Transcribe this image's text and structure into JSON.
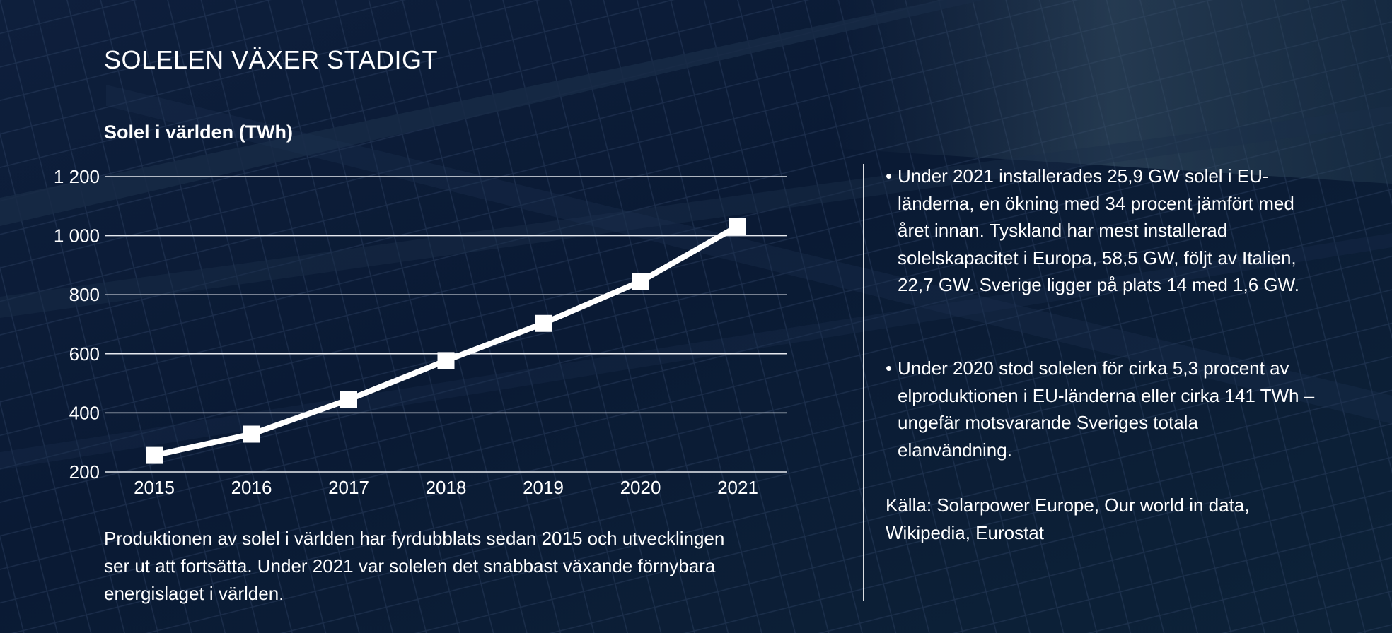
{
  "header": {
    "title": "SOLELEN VÄXER STADIGT"
  },
  "chart_data": {
    "type": "line",
    "title": "Solel i världen (TWh)",
    "xlabel": "",
    "ylabel": "",
    "categories": [
      "2015",
      "2016",
      "2017",
      "2018",
      "2019",
      "2020",
      "2021"
    ],
    "values": [
      256,
      328,
      445,
      577,
      703,
      845,
      1032
    ],
    "ylim": [
      200,
      1200
    ],
    "yticks": [
      200,
      400,
      600,
      800,
      1000,
      1200
    ],
    "ytick_labels": [
      "200",
      "400",
      "600",
      "800",
      "1 000",
      "1 200"
    ],
    "grid": true,
    "marker": "square",
    "colors": {
      "line": "#ffffff",
      "grid": "#e6e9ef"
    }
  },
  "caption": "Produktionen av solel i världen har fyrdubblats sedan 2015 och utvecklingen ser ut att fortsätta. Under 2021 var solelen det snabbast växande förnybara energislaget i världen.",
  "facts": {
    "bullet_symbol": "•",
    "bullets": [
      "Under 2021 installerades 25,9 GW solel i EU-länderna, en ökning med 34 procent jämfört med året innan. Tyskland har mest installerad solelskapacitet i Europa, 58,5 GW, följt av Italien, 22,7 GW. Sverige ligger på plats 14 med 1,6 GW.",
      "Under 2020 stod solelen för cirka 5,3 procent av elproduktionen i EU-länderna eller cirka 141 TWh – ungefär motsvarande Sveriges totala elanvändning."
    ],
    "source": "Källa: Solarpower Europe, Our world in data, Wikipedia, Eurostat"
  }
}
